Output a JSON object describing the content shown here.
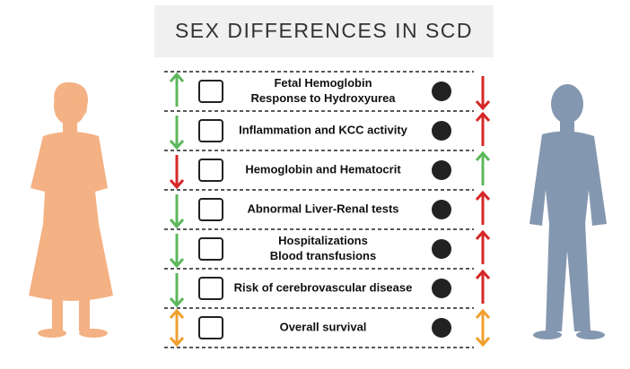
{
  "title": "SEX DIFFERENCES IN SCD",
  "rows": [
    {
      "lines": [
        "Fetal Hemoglobin",
        "Response to Hydroxyurea"
      ]
    },
    {
      "lines": [
        "Inflammation and KCC activity"
      ]
    },
    {
      "lines": [
        "Hemoglobin and Hematocrit"
      ]
    },
    {
      "lines": [
        "Abnormal Liver-Renal tests"
      ]
    },
    {
      "lines": [
        "Hospitalizations",
        "Blood transfusions"
      ]
    },
    {
      "lines": [
        "Risk of cerebrovascular disease"
      ]
    },
    {
      "lines": [
        "Overall survival"
      ]
    }
  ]
}
